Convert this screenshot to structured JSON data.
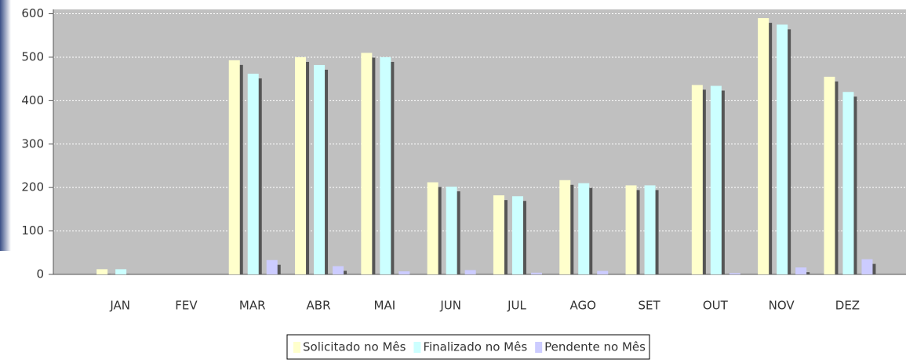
{
  "chart_data": {
    "type": "bar",
    "categories": [
      "JAN",
      "FEV",
      "MAR",
      "ABR",
      "MAI",
      "JUN",
      "JUL",
      "AGO",
      "SET",
      "OUT",
      "NOV",
      "DEZ"
    ],
    "series": [
      {
        "name": "Solicitado no Mês",
        "color": "#ffffcc",
        "values": [
          12,
          0,
          493,
          500,
          510,
          212,
          182,
          217,
          205,
          436,
          590,
          455
        ]
      },
      {
        "name": "Finalizado no Mês",
        "color": "#ccffff",
        "values": [
          12,
          0,
          462,
          482,
          500,
          202,
          180,
          210,
          205,
          434,
          575,
          420
        ]
      },
      {
        "name": "Pendente no Mês",
        "color": "#ccccff",
        "values": [
          0,
          0,
          33,
          19,
          7,
          10,
          4,
          8,
          0,
          3,
          16,
          35
        ]
      }
    ],
    "ylim": [
      0,
      610
    ],
    "yticks": [
      0,
      100,
      200,
      300,
      400,
      500,
      600
    ],
    "grid": true,
    "legend": "bottom"
  }
}
